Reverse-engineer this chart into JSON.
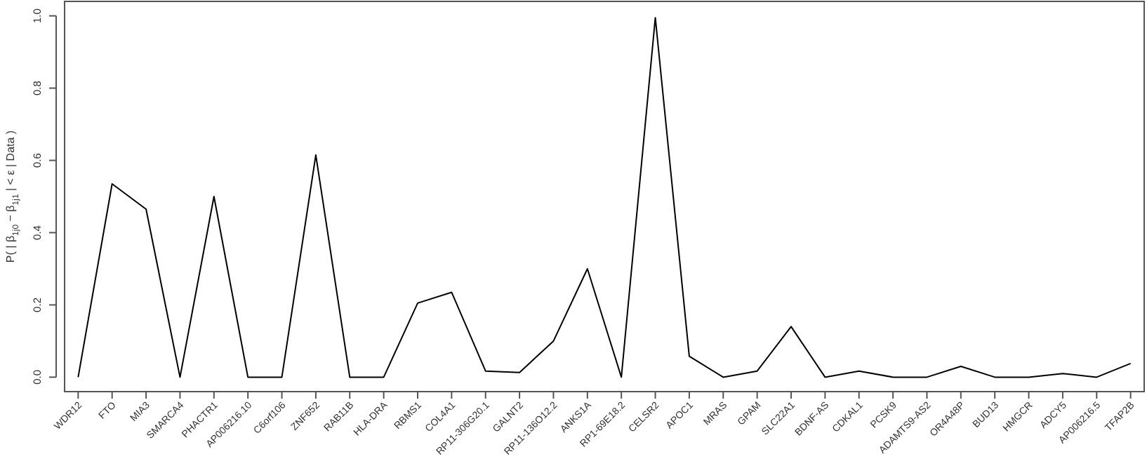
{
  "chart_data": {
    "type": "line",
    "ylabel": "P( | β$_{1j0}$ − β$_{1j1}$ | < ε | Data )",
    "categories": [
      "WDR12",
      "FTO",
      "MIA3",
      "SMARCA4",
      "PHACTR1",
      "AP006216.10",
      "C6orf106",
      "ZNF652",
      "RAB11B",
      "HLA-DRA",
      "RBMS1",
      "COL4A1",
      "RP11-306G20.1",
      "GALNT2",
      "RP11-136O12.2",
      "ANKS1A",
      "RP1-69E18.2",
      "CELSR2",
      "APOC1",
      "MRAS",
      "GPAM",
      "SLC22A1",
      "BDNF-AS",
      "CDKAL1",
      "PCSK9",
      "ADAMTS9-AS2",
      "OR4A48P",
      "BUD13",
      "HMGCR",
      "ADCY5",
      "AP006216.5",
      "TFAP2B"
    ],
    "series": [
      {
        "color": "#000000",
        "values": [
          0,
          0.535,
          0.465,
          0,
          0.5,
          0,
          0,
          0.615,
          0,
          0,
          0.205,
          0.235,
          0.017,
          0.013,
          0.1,
          0.3,
          0,
          0.995,
          0.058,
          0,
          0.017,
          0.14,
          0,
          0.017,
          0,
          0,
          0.03,
          0,
          0,
          0.01,
          0,
          0.038
        ]
      }
    ],
    "ylim": [
      -0.04,
      1.04
    ],
    "yticks": [
      {
        "value": 0,
        "label": "0.0"
      },
      {
        "value": 0.2,
        "label": "0.2"
      },
      {
        "value": 0.4,
        "label": "0.4"
      },
      {
        "value": 0.6,
        "label": "0.6"
      },
      {
        "value": 0.8,
        "label": "0.8"
      },
      {
        "value": 1,
        "label": "1.0"
      }
    ],
    "grid": false,
    "marker": "none",
    "line_style": "solid"
  }
}
